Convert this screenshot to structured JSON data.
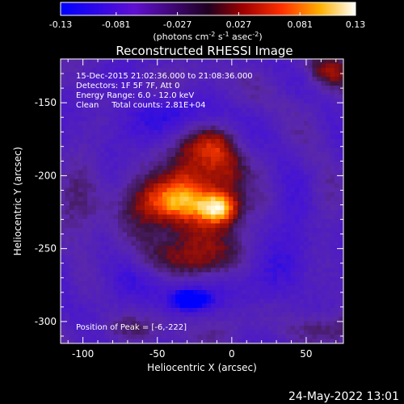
{
  "chart_data": {
    "type": "heatmap",
    "title": "Reconstructed RHESSI Image",
    "xlabel": "Heliocentric X (arcsec)",
    "ylabel": "Heliocentric Y (arcsec)",
    "xlim": [
      -115,
      75
    ],
    "ylim": [
      -315,
      -120
    ],
    "xticks": [
      -100,
      -50,
      0,
      50
    ],
    "yticks": [
      -150,
      -200,
      -250,
      -300
    ],
    "colorbar": {
      "min": -0.13,
      "max": 0.13,
      "ticks": [
        "-0.13",
        "-0.081",
        "-0.027",
        "0.027",
        "0.081",
        "0.13"
      ],
      "unit_main": "(photons cm",
      "unit_sup1": "-2",
      "unit_mid": " s",
      "unit_sup2": "-1",
      "unit_end": " asec",
      "unit_sup3": "-2",
      "unit_close": ")"
    },
    "annotations": {
      "time": "15-Dec-2015 21:02:36.000 to 21:08:36.000",
      "detectors": "Detectors: 1F 5F 7F, Att 0",
      "energy": "Energy Range: 6.0 - 12.0 keV",
      "clean": "Clean     Total counts: 2.81E+04",
      "peak": "Position of Peak = [-6,-222]"
    },
    "sources": [
      {
        "x": -8,
        "y": -222,
        "sx": 9,
        "sy": 8,
        "amp": 0.13
      },
      {
        "x": -40,
        "y": -217,
        "sx": 16,
        "sy": 11,
        "amp": 0.112
      },
      {
        "x": -24,
        "y": -222,
        "sx": 30,
        "sy": 12,
        "amp": 0.05
      },
      {
        "x": -25,
        "y": -197,
        "sx": 13,
        "sy": 10,
        "amp": 0.075
      },
      {
        "x": -3,
        "y": -198,
        "sx": 9,
        "sy": 9,
        "amp": 0.06
      },
      {
        "x": -22,
        "y": -244,
        "sx": 24,
        "sy": 9,
        "amp": 0.058
      },
      {
        "x": -30,
        "y": -258,
        "sx": 26,
        "sy": 8,
        "amp": 0.05
      },
      {
        "x": -22,
        "y": -178,
        "sx": 14,
        "sy": 9,
        "amp": 0.05
      },
      {
        "x": -10,
        "y": -182,
        "sx": 8,
        "sy": 8,
        "amp": 0.04
      },
      {
        "x": -28,
        "y": -285,
        "sx": 9,
        "sy": 5,
        "amp": -0.095
      },
      {
        "x": 65,
        "y": -128,
        "sx": 10,
        "sy": 8,
        "amp": 0.065
      },
      {
        "x": 60,
        "y": -305,
        "sx": 20,
        "sy": 8,
        "amp": 0.04
      },
      {
        "x": -70,
        "y": -305,
        "sx": 18,
        "sy": 6,
        "amp": 0.03
      },
      {
        "x": -95,
        "y": -225,
        "sx": 12,
        "sy": 20,
        "amp": 0.025
      },
      {
        "x": -50,
        "y": -160,
        "sx": 25,
        "sy": 15,
        "amp": -0.03
      },
      {
        "x": 30,
        "y": -250,
        "sx": 20,
        "sy": 30,
        "amp": -0.03
      },
      {
        "x": -65,
        "y": -270,
        "sx": 30,
        "sy": 20,
        "amp": -0.02
      }
    ]
  },
  "footer": {
    "timestamp": "24-May-2022 13:01"
  }
}
